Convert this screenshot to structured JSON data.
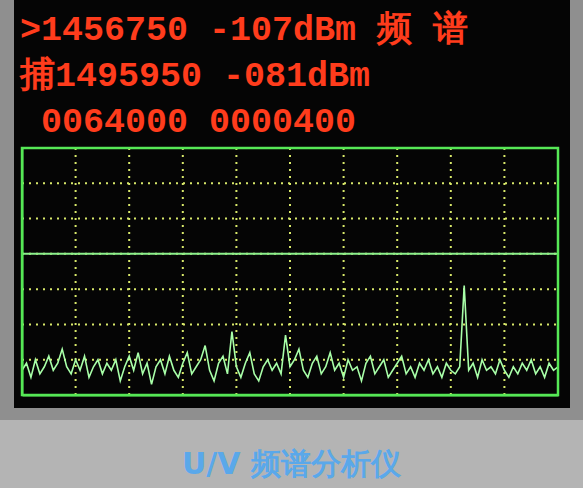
{
  "chart_data": {
    "type": "line",
    "title": "U/V 频谱分析仪",
    "annotations": [
      ">1456750 -107dBm 频 谱",
      "捕1495950 -081dBm",
      " 0064000 0000400"
    ],
    "x": [
      0,
      1,
      2,
      3,
      4,
      5,
      6,
      7,
      8,
      9,
      10,
      11,
      12,
      13,
      14,
      15,
      16,
      17,
      18,
      19,
      20,
      21,
      22,
      23,
      24,
      25,
      26,
      27,
      28,
      29,
      30,
      31,
      32,
      33,
      34,
      35,
      36,
      37,
      38,
      39,
      40,
      41,
      42,
      43,
      44,
      45,
      46,
      47,
      48,
      49,
      50,
      51,
      52,
      53,
      54,
      55,
      56,
      57,
      58,
      59,
      60,
      61,
      62,
      63,
      64,
      65,
      66,
      67,
      68,
      69,
      70,
      71,
      72,
      73,
      74,
      75,
      76,
      77,
      78,
      79,
      80,
      81,
      82,
      83,
      84,
      85,
      86,
      87,
      88,
      89,
      90,
      91,
      92,
      93,
      94,
      95,
      96,
      97,
      98,
      99,
      100,
      101,
      102,
      103,
      104,
      105,
      106,
      107,
      108,
      109,
      110,
      111,
      112,
      113,
      114,
      115,
      116,
      117,
      118,
      119,
      120
    ],
    "values": [
      0.7,
      0.9,
      0.5,
      1.0,
      0.6,
      0.8,
      1.1,
      0.7,
      0.9,
      1.3,
      0.8,
      0.6,
      1.0,
      0.7,
      1.1,
      0.5,
      0.8,
      1.0,
      0.6,
      0.9,
      0.7,
      1.0,
      0.4,
      0.8,
      1.1,
      0.7,
      1.2,
      0.6,
      0.9,
      0.3,
      0.8,
      1.0,
      0.6,
      1.1,
      0.7,
      0.5,
      0.9,
      1.2,
      0.6,
      0.8,
      1.0,
      1.4,
      0.7,
      0.4,
      0.9,
      1.1,
      0.6,
      1.8,
      0.8,
      0.5,
      0.9,
      1.2,
      0.6,
      0.4,
      0.8,
      1.0,
      0.7,
      0.9,
      0.6,
      1.7,
      0.8,
      1.0,
      1.3,
      0.7,
      0.5,
      0.9,
      1.1,
      0.6,
      0.8,
      1.2,
      0.7,
      0.9,
      0.5,
      1.0,
      0.7,
      0.8,
      0.4,
      0.9,
      1.1,
      0.6,
      0.8,
      1.0,
      0.5,
      0.7,
      0.9,
      1.1,
      0.6,
      0.8,
      0.5,
      0.9,
      0.7,
      1.0,
      0.6,
      0.8,
      0.5,
      0.9,
      0.7,
      0.6,
      0.8,
      3.1,
      0.7,
      0.9,
      0.5,
      1.0,
      0.7,
      0.8,
      0.6,
      1.0,
      0.7,
      0.5,
      0.8,
      0.6,
      0.9,
      0.7,
      1.0,
      0.6,
      0.8,
      0.5,
      0.9,
      0.7,
      0.8
    ],
    "color": "#a8ffa8",
    "xlim": [
      0,
      120
    ],
    "xticks": [
      0,
      12,
      24,
      36,
      48,
      60,
      72,
      84,
      96,
      108,
      120
    ],
    "ylim": [
      0,
      7
    ],
    "yticks": [
      0,
      1,
      2,
      3,
      4,
      5,
      6,
      7
    ],
    "threshold": 4,
    "grid": true,
    "tick_labels": false
  }
}
